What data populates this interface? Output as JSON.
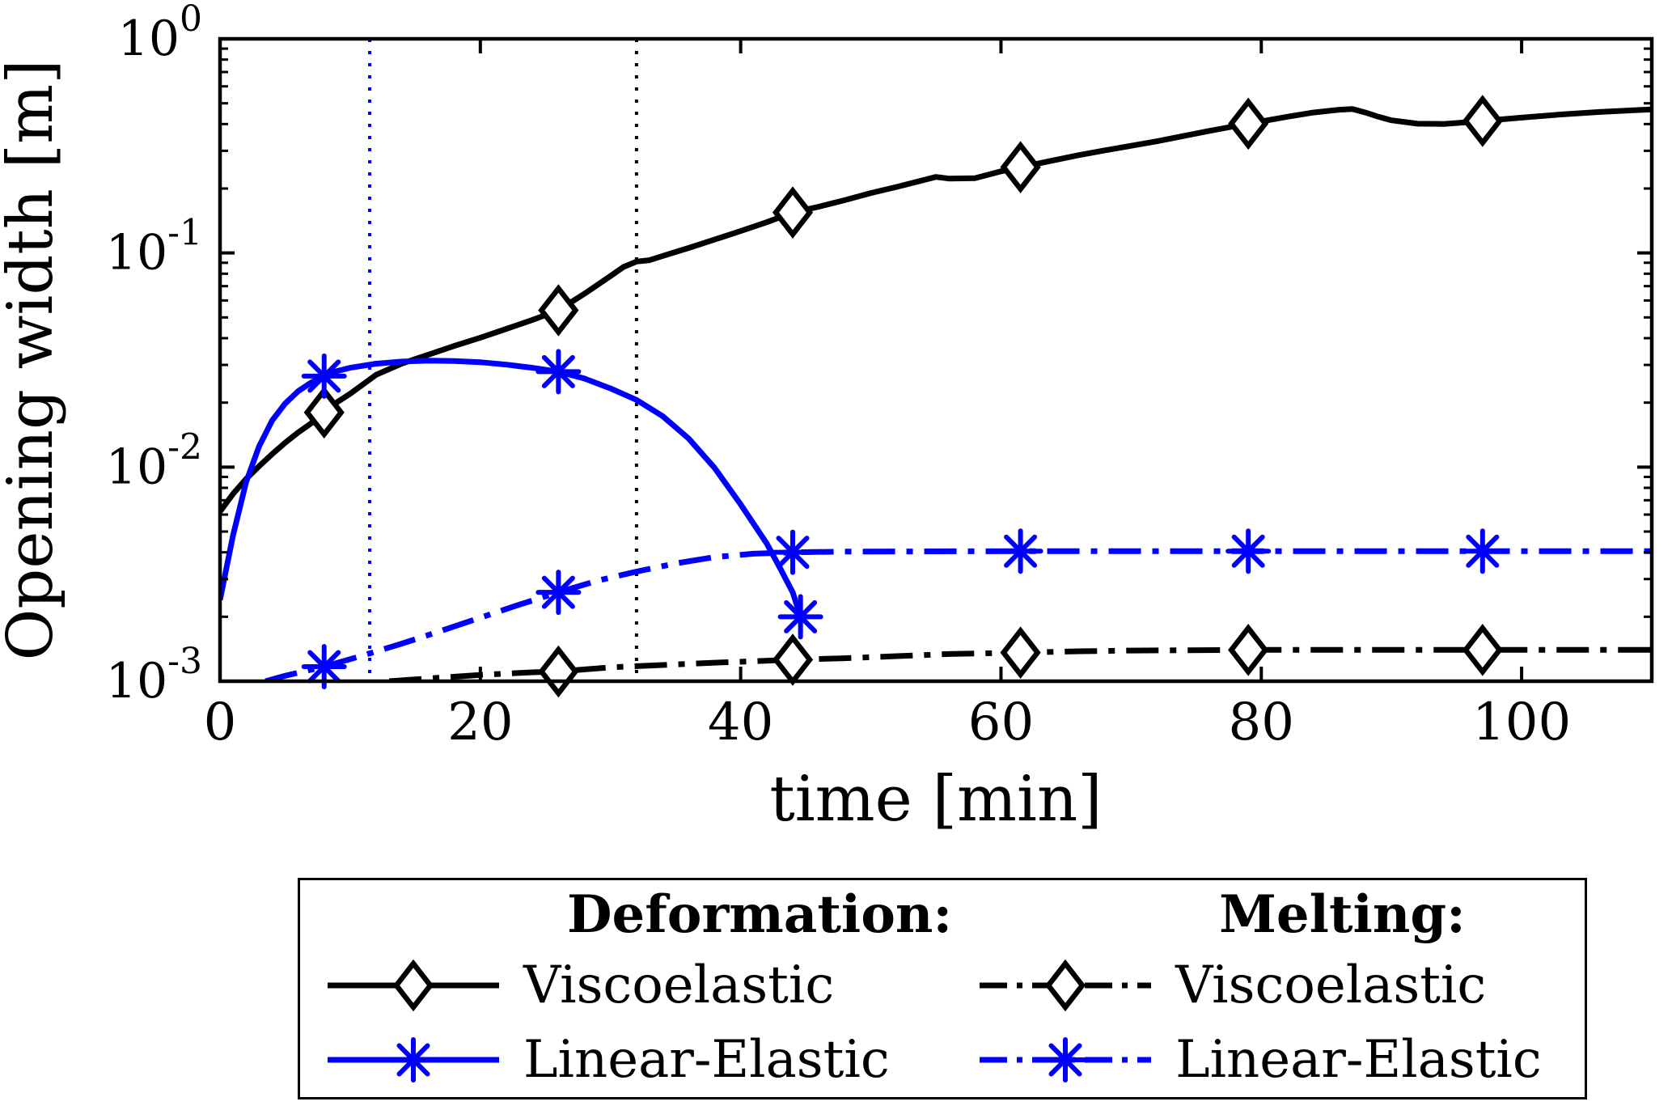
{
  "chart_data": {
    "type": "line",
    "title": "",
    "xlabel": "time [min]",
    "ylabel": "Opening width [m]",
    "xlim": [
      0,
      110
    ],
    "ylog": [
      -3,
      0
    ],
    "x_ticks": [
      0,
      20,
      40,
      60,
      80,
      100
    ],
    "y_tick_exps": [
      0,
      -1,
      -2,
      -3
    ],
    "grid": false,
    "legend_position": "below",
    "colors": {
      "black": "#000000",
      "blue": "#0000ff"
    },
    "vlines": [
      {
        "x": 11.5,
        "color": "#0000ff",
        "style": "dotted"
      },
      {
        "x": 32,
        "color": "#000000",
        "style": "dotted"
      }
    ],
    "series": [
      {
        "name": "Deformation Viscoelastic",
        "color": "#000000",
        "line": "solid",
        "marker": "diamond",
        "points": [
          [
            0,
            0.0062
          ],
          [
            1,
            0.0075
          ],
          [
            2,
            0.0088
          ],
          [
            3,
            0.0101
          ],
          [
            4,
            0.0115
          ],
          [
            5,
            0.013
          ],
          [
            6,
            0.0145
          ],
          [
            7,
            0.016
          ],
          [
            8,
            0.018
          ],
          [
            9,
            0.0201
          ],
          [
            10,
            0.022
          ],
          [
            12,
            0.027
          ],
          [
            14,
            0.0305
          ],
          [
            16,
            0.0335
          ],
          [
            18,
            0.0368
          ],
          [
            20,
            0.0402
          ],
          [
            22,
            0.0442
          ],
          [
            24,
            0.0487
          ],
          [
            26,
            0.054
          ],
          [
            28,
            0.0645
          ],
          [
            30,
            0.078
          ],
          [
            31,
            0.086
          ],
          [
            32,
            0.0912
          ],
          [
            33,
            0.0925
          ],
          [
            34,
            0.0968
          ],
          [
            36,
            0.1055
          ],
          [
            38,
            0.1155
          ],
          [
            40,
            0.1265
          ],
          [
            42,
            0.1392
          ],
          [
            44,
            0.1545
          ],
          [
            46,
            0.1645
          ],
          [
            48,
            0.1765
          ],
          [
            50,
            0.1905
          ],
          [
            52,
            0.2035
          ],
          [
            54,
            0.2185
          ],
          [
            55,
            0.2265
          ],
          [
            56,
            0.2225
          ],
          [
            58,
            0.2235
          ],
          [
            60,
            0.2405
          ],
          [
            61.5,
            0.2515
          ],
          [
            64,
            0.2705
          ],
          [
            66,
            0.2865
          ],
          [
            68,
            0.3015
          ],
          [
            70,
            0.3165
          ],
          [
            72,
            0.3325
          ],
          [
            74,
            0.3515
          ],
          [
            76,
            0.3715
          ],
          [
            79,
            0.4015
          ],
          [
            82,
            0.4325
          ],
          [
            84,
            0.4525
          ],
          [
            86,
            0.4665
          ],
          [
            87,
            0.4705
          ],
          [
            88,
            0.4525
          ],
          [
            89,
            0.4325
          ],
          [
            90,
            0.4165
          ],
          [
            92,
            0.4015
          ],
          [
            94,
            0.4005
          ],
          [
            96,
            0.4085
          ],
          [
            97,
            0.4135
          ],
          [
            100,
            0.4285
          ],
          [
            103,
            0.4435
          ],
          [
            106,
            0.4555
          ],
          [
            110,
            0.4685
          ]
        ],
        "marker_points": [
          [
            8,
            0.018
          ],
          [
            26,
            0.054
          ],
          [
            44,
            0.1545
          ],
          [
            61.5,
            0.2515
          ],
          [
            79,
            0.4015
          ],
          [
            97,
            0.4135
          ]
        ]
      },
      {
        "name": "Deformation Linear-Elastic",
        "color": "#0000ff",
        "line": "solid",
        "marker": "asterisk",
        "points": [
          [
            0,
            0.0024
          ],
          [
            1,
            0.0048
          ],
          [
            2,
            0.0085
          ],
          [
            3,
            0.0125
          ],
          [
            4,
            0.0165
          ],
          [
            5,
            0.0198
          ],
          [
            6,
            0.0226
          ],
          [
            7,
            0.0248
          ],
          [
            8,
            0.0266
          ],
          [
            9,
            0.0281
          ],
          [
            10,
            0.0291
          ],
          [
            12,
            0.0304
          ],
          [
            14,
            0.0311
          ],
          [
            16,
            0.0314
          ],
          [
            18,
            0.0313
          ],
          [
            20,
            0.0309
          ],
          [
            22,
            0.0301
          ],
          [
            24,
            0.0291
          ],
          [
            26,
            0.0279
          ],
          [
            28,
            0.0259
          ],
          [
            30,
            0.0233
          ],
          [
            32,
            0.0206
          ],
          [
            34,
            0.0173
          ],
          [
            36,
            0.0136
          ],
          [
            38,
            0.0099
          ],
          [
            40,
            0.0067
          ],
          [
            42,
            0.0044
          ],
          [
            43,
            0.0034
          ],
          [
            44,
            0.0026
          ],
          [
            44.6,
            0.002
          ]
        ],
        "marker_points": [
          [
            8,
            0.0266
          ],
          [
            26,
            0.0279
          ],
          [
            44.6,
            0.002
          ]
        ]
      },
      {
        "name": "Melting Viscoelastic",
        "color": "#000000",
        "line": "dashdot",
        "marker": "diamond",
        "points": [
          [
            13,
            0.001
          ],
          [
            16,
            0.00103
          ],
          [
            20,
            0.00107
          ],
          [
            24,
            0.0011
          ],
          [
            26,
            0.00111
          ],
          [
            30,
            0.00116
          ],
          [
            34,
            0.00119
          ],
          [
            38,
            0.00122
          ],
          [
            41,
            0.00124
          ],
          [
            44,
            0.00126
          ],
          [
            48,
            0.00128
          ],
          [
            52,
            0.00131
          ],
          [
            56,
            0.00134
          ],
          [
            61.5,
            0.00136
          ],
          [
            66,
            0.00138
          ],
          [
            70,
            0.00139
          ],
          [
            79,
            0.0014
          ],
          [
            88,
            0.0014
          ],
          [
            97,
            0.0014
          ],
          [
            110,
            0.0014
          ]
        ],
        "marker_points": [
          [
            26,
            0.00111
          ],
          [
            44,
            0.00126
          ],
          [
            61.5,
            0.00136
          ],
          [
            79,
            0.0014
          ],
          [
            97,
            0.0014
          ]
        ]
      },
      {
        "name": "Melting Linear-Elastic",
        "color": "#0000ff",
        "line": "dashdot",
        "marker": "asterisk",
        "points": [
          [
            3.5,
            0.001
          ],
          [
            5,
            0.00106
          ],
          [
            8,
            0.00117
          ],
          [
            11,
            0.00132
          ],
          [
            14,
            0.0015
          ],
          [
            17,
            0.00172
          ],
          [
            20,
            0.00198
          ],
          [
            23,
            0.00228
          ],
          [
            26,
            0.0026
          ],
          [
            29,
            0.00295
          ],
          [
            32,
            0.00325
          ],
          [
            35,
            0.00355
          ],
          [
            38,
            0.0038
          ],
          [
            41,
            0.00394
          ],
          [
            44,
            0.004
          ],
          [
            48,
            0.00403
          ],
          [
            55,
            0.00404
          ],
          [
            61.5,
            0.00405
          ],
          [
            70,
            0.00405
          ],
          [
            79,
            0.00405
          ],
          [
            90,
            0.00405
          ],
          [
            97,
            0.00405
          ],
          [
            110,
            0.00405
          ]
        ],
        "marker_points": [
          [
            8,
            0.00117
          ],
          [
            26,
            0.0026
          ],
          [
            44,
            0.004
          ],
          [
            61.5,
            0.00405
          ],
          [
            79,
            0.00405
          ],
          [
            97,
            0.00405
          ]
        ]
      }
    ]
  },
  "legend": {
    "headers": [
      {
        "label": "Deformation:"
      },
      {
        "label": "Melting:"
      }
    ],
    "entries": [
      {
        "label": "Viscoelastic",
        "color": "#000000",
        "style": "solid",
        "marker": "diamond"
      },
      {
        "label": "Viscoelastic",
        "color": "#000000",
        "style": "dashdot",
        "marker": "diamond"
      },
      {
        "label": "Linear-Elastic",
        "color": "#0000ff",
        "style": "solid",
        "marker": "asterisk"
      },
      {
        "label": "Linear-Elastic",
        "color": "#0000ff",
        "style": "dashdot",
        "marker": "asterisk"
      }
    ]
  }
}
